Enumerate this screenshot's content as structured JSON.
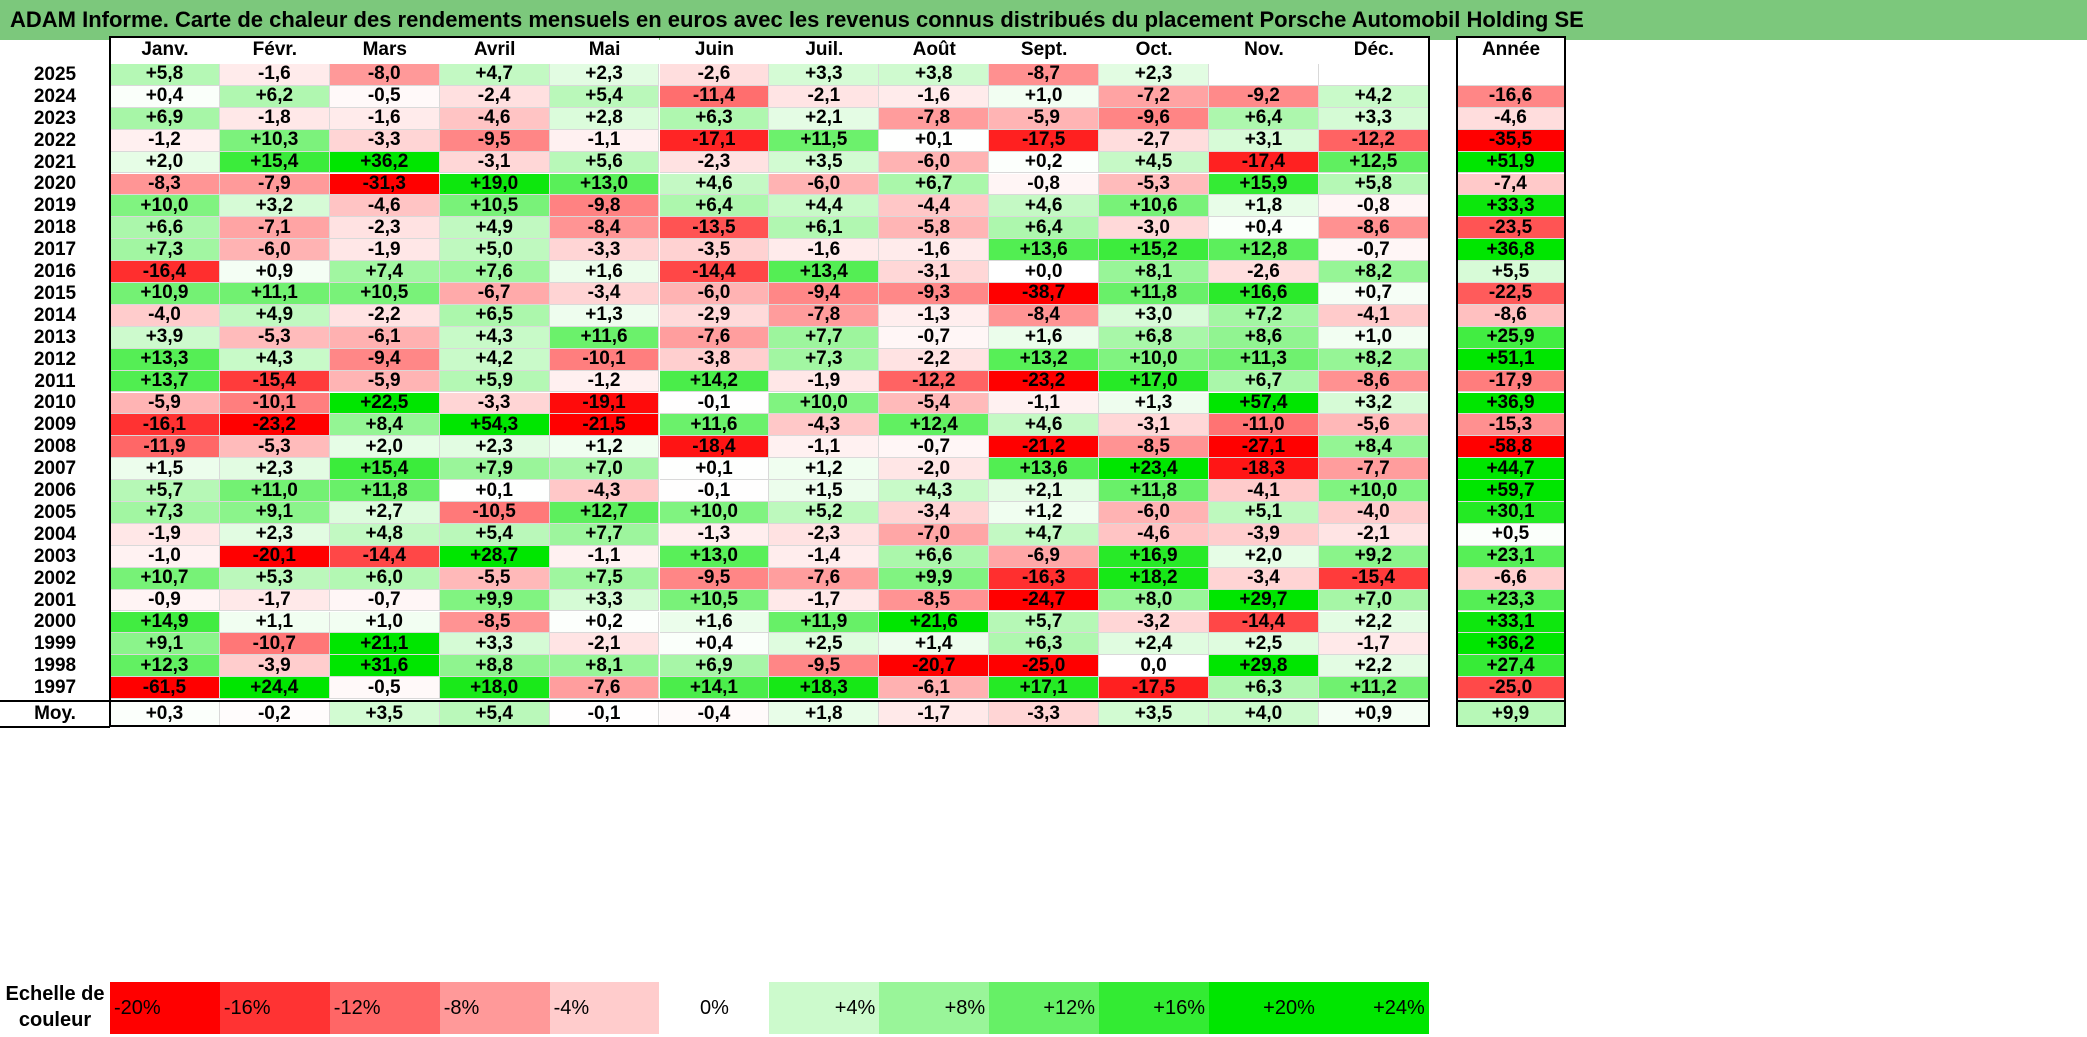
{
  "title": "ADAM Informe. Carte de chaleur des rendements mensuels en euros avec les revenus connus distribués du placement Porsche Automobil Holding SE",
  "chart_data": {
    "type": "heatmap",
    "months": [
      "Janv.",
      "Févr.",
      "Mars",
      "Avril",
      "Mai",
      "Juin",
      "Juil.",
      "Août",
      "Sept.",
      "Oct.",
      "Nov.",
      "Déc."
    ],
    "annual_header": "Année",
    "rows": [
      {
        "year": "2025",
        "values": [
          "+5,8",
          "-1,6",
          "-8,0",
          "+4,7",
          "+2,3",
          "-2,6",
          "+3,3",
          "+3,8",
          "-8,7",
          "+2,3",
          "",
          ""
        ],
        "annual": ""
      },
      {
        "year": "2024",
        "values": [
          "+0,4",
          "+6,2",
          "-0,5",
          "-2,4",
          "+5,4",
          "-11,4",
          "-2,1",
          "-1,6",
          "+1,0",
          "-7,2",
          "-9,2",
          "+4,2"
        ],
        "annual": "-16,6"
      },
      {
        "year": "2023",
        "values": [
          "+6,9",
          "-1,8",
          "-1,6",
          "-4,6",
          "+2,8",
          "+6,3",
          "+2,1",
          "-7,8",
          "-5,9",
          "-9,6",
          "+6,4",
          "+3,3"
        ],
        "annual": "-4,6"
      },
      {
        "year": "2022",
        "values": [
          "-1,2",
          "+10,3",
          "-3,3",
          "-9,5",
          "-1,1",
          "-17,1",
          "+11,5",
          "+0,1",
          "-17,5",
          "-2,7",
          "+3,1",
          "-12,2"
        ],
        "annual": "-35,5"
      },
      {
        "year": "2021",
        "values": [
          "+2,0",
          "+15,4",
          "+36,2",
          "-3,1",
          "+5,6",
          "-2,3",
          "+3,5",
          "-6,0",
          "+0,2",
          "+4,5",
          "-17,4",
          "+12,5"
        ],
        "annual": "+51,9"
      },
      {
        "year": "2020",
        "values": [
          "-8,3",
          "-7,9",
          "-31,3",
          "+19,0",
          "+13,0",
          "+4,6",
          "-6,0",
          "+6,7",
          "-0,8",
          "-5,3",
          "+15,9",
          "+5,8"
        ],
        "annual": "-7,4"
      },
      {
        "year": "2019",
        "values": [
          "+10,0",
          "+3,2",
          "-4,6",
          "+10,5",
          "-9,8",
          "+6,4",
          "+4,4",
          "-4,4",
          "+4,6",
          "+10,6",
          "+1,8",
          "-0,8"
        ],
        "annual": "+33,3"
      },
      {
        "year": "2018",
        "values": [
          "+6,6",
          "-7,1",
          "-2,3",
          "+4,9",
          "-8,4",
          "-13,5",
          "+6,1",
          "-5,8",
          "+6,4",
          "-3,0",
          "+0,4",
          "-8,6"
        ],
        "annual": "-23,5"
      },
      {
        "year": "2017",
        "values": [
          "+7,3",
          "-6,0",
          "-1,9",
          "+5,0",
          "-3,3",
          "-3,5",
          "-1,6",
          "-1,6",
          "+13,6",
          "+15,2",
          "+12,8",
          "-0,7"
        ],
        "annual": "+36,8"
      },
      {
        "year": "2016",
        "values": [
          "-16,4",
          "+0,9",
          "+7,4",
          "+7,6",
          "+1,6",
          "-14,4",
          "+13,4",
          "-3,1",
          "+0,0",
          "+8,1",
          "-2,6",
          "+8,2"
        ],
        "annual": "+5,5"
      },
      {
        "year": "2015",
        "values": [
          "+10,9",
          "+11,1",
          "+10,5",
          "-6,7",
          "-3,4",
          "-6,0",
          "-9,4",
          "-9,3",
          "-38,7",
          "+11,8",
          "+16,6",
          "+0,7"
        ],
        "annual": "-22,5"
      },
      {
        "year": "2014",
        "values": [
          "-4,0",
          "+4,9",
          "-2,2",
          "+6,5",
          "+1,3",
          "-2,9",
          "-7,8",
          "-1,3",
          "-8,4",
          "+3,0",
          "+7,2",
          "-4,1"
        ],
        "annual": "-8,6"
      },
      {
        "year": "2013",
        "values": [
          "+3,9",
          "-5,3",
          "-6,1",
          "+4,3",
          "+11,6",
          "-7,6",
          "+7,7",
          "-0,7",
          "+1,6",
          "+6,8",
          "+8,6",
          "+1,0"
        ],
        "annual": "+25,9"
      },
      {
        "year": "2012",
        "values": [
          "+13,3",
          "+4,3",
          "-9,4",
          "+4,2",
          "-10,1",
          "-3,8",
          "+7,3",
          "-2,2",
          "+13,2",
          "+10,0",
          "+11,3",
          "+8,2"
        ],
        "annual": "+51,1"
      },
      {
        "year": "2011",
        "values": [
          "+13,7",
          "-15,4",
          "-5,9",
          "+5,9",
          "-1,2",
          "+14,2",
          "-1,9",
          "-12,2",
          "-23,2",
          "+17,0",
          "+6,7",
          "-8,6"
        ],
        "annual": "-17,9"
      },
      {
        "year": "2010",
        "values": [
          "-5,9",
          "-10,1",
          "+22,5",
          "-3,3",
          "-19,1",
          "-0,1",
          "+10,0",
          "-5,4",
          "-1,1",
          "+1,3",
          "+57,4",
          "+3,2"
        ],
        "annual": "+36,9"
      },
      {
        "year": "2009",
        "values": [
          "-16,1",
          "-23,2",
          "+8,4",
          "+54,3",
          "-21,5",
          "+11,6",
          "-4,3",
          "+12,4",
          "+4,6",
          "-3,1",
          "-11,0",
          "-5,6"
        ],
        "annual": "-15,3"
      },
      {
        "year": "2008",
        "values": [
          "-11,9",
          "-5,3",
          "+2,0",
          "+2,3",
          "+1,2",
          "-18,4",
          "-1,1",
          "-0,7",
          "-21,2",
          "-8,5",
          "-27,1",
          "+8,4"
        ],
        "annual": "-58,8"
      },
      {
        "year": "2007",
        "values": [
          "+1,5",
          "+2,3",
          "+15,4",
          "+7,9",
          "+7,0",
          "+0,1",
          "+1,2",
          "-2,0",
          "+13,6",
          "+23,4",
          "-18,3",
          "-7,7"
        ],
        "annual": "+44,7"
      },
      {
        "year": "2006",
        "values": [
          "+5,7",
          "+11,0",
          "+11,8",
          "+0,1",
          "-4,3",
          "-0,1",
          "+1,5",
          "+4,3",
          "+2,1",
          "+11,8",
          "-4,1",
          "+10,0"
        ],
        "annual": "+59,7"
      },
      {
        "year": "2005",
        "values": [
          "+7,3",
          "+9,1",
          "+2,7",
          "-10,5",
          "+12,7",
          "+10,0",
          "+5,2",
          "-3,4",
          "+1,2",
          "-6,0",
          "+5,1",
          "-4,0"
        ],
        "annual": "+30,1"
      },
      {
        "year": "2004",
        "values": [
          "-1,9",
          "+2,3",
          "+4,8",
          "+5,4",
          "+7,7",
          "-1,3",
          "-2,3",
          "-7,0",
          "+4,7",
          "-4,6",
          "-3,9",
          "-2,1"
        ],
        "annual": "+0,5"
      },
      {
        "year": "2003",
        "values": [
          "-1,0",
          "-20,1",
          "-14,4",
          "+28,7",
          "-1,1",
          "+13,0",
          "-1,4",
          "+6,6",
          "-6,9",
          "+16,9",
          "+2,0",
          "+9,2"
        ],
        "annual": "+23,1"
      },
      {
        "year": "2002",
        "values": [
          "+10,7",
          "+5,3",
          "+6,0",
          "-5,5",
          "+7,5",
          "-9,5",
          "-7,6",
          "+9,9",
          "-16,3",
          "+18,2",
          "-3,4",
          "-15,4"
        ],
        "annual": "-6,6"
      },
      {
        "year": "2001",
        "values": [
          "-0,9",
          "-1,7",
          "-0,7",
          "+9,9",
          "+3,3",
          "+10,5",
          "-1,7",
          "-8,5",
          "-24,7",
          "+8,0",
          "+29,7",
          "+7,0"
        ],
        "annual": "+23,3"
      },
      {
        "year": "2000",
        "values": [
          "+14,9",
          "+1,1",
          "+1,0",
          "-8,5",
          "+0,2",
          "+1,6",
          "+11,9",
          "+21,6",
          "+5,7",
          "-3,2",
          "-14,4",
          "+2,2"
        ],
        "annual": "+33,1"
      },
      {
        "year": "1999",
        "values": [
          "+9,1",
          "-10,7",
          "+21,1",
          "+3,3",
          "-2,1",
          "+0,4",
          "+2,5",
          "+1,4",
          "+6,3",
          "+2,4",
          "+2,5",
          "-1,7"
        ],
        "annual": "+36,2"
      },
      {
        "year": "1998",
        "values": [
          "+12,3",
          "-3,9",
          "+31,6",
          "+8,8",
          "+8,1",
          "+6,9",
          "-9,5",
          "-20,7",
          "-25,0",
          "0,0",
          "+29,8",
          "+2,2"
        ],
        "annual": "+27,4"
      },
      {
        "year": "1997",
        "values": [
          "-61,5",
          "+24,4",
          "-0,5",
          "+18,0",
          "-7,6",
          "+14,1",
          "+18,3",
          "-6,1",
          "+17,1",
          "-17,5",
          "+6,3",
          "+11,2"
        ],
        "annual": "-25,0"
      }
    ],
    "average": {
      "label": "Moy.",
      "values": [
        "+0,3",
        "-0,2",
        "+3,5",
        "+5,4",
        "-0,1",
        "-0,4",
        "+1,8",
        "-1,7",
        "-3,3",
        "+3,5",
        "+4,0",
        "+0,9"
      ],
      "annual": "+9,9"
    },
    "scale": {
      "label": "Echelle de couleur",
      "steps": [
        "-20%",
        "-16%",
        "-12%",
        "-8%",
        "-4%",
        "0%",
        "+4%",
        "+8%",
        "+12%",
        "+16%",
        "+20%",
        "+24%"
      ]
    },
    "colors": {
      "negative_max": "#ff0000",
      "neutral": "#ffffff",
      "positive_max": "#00e600",
      "title_bg": "#7cc87c"
    }
  }
}
